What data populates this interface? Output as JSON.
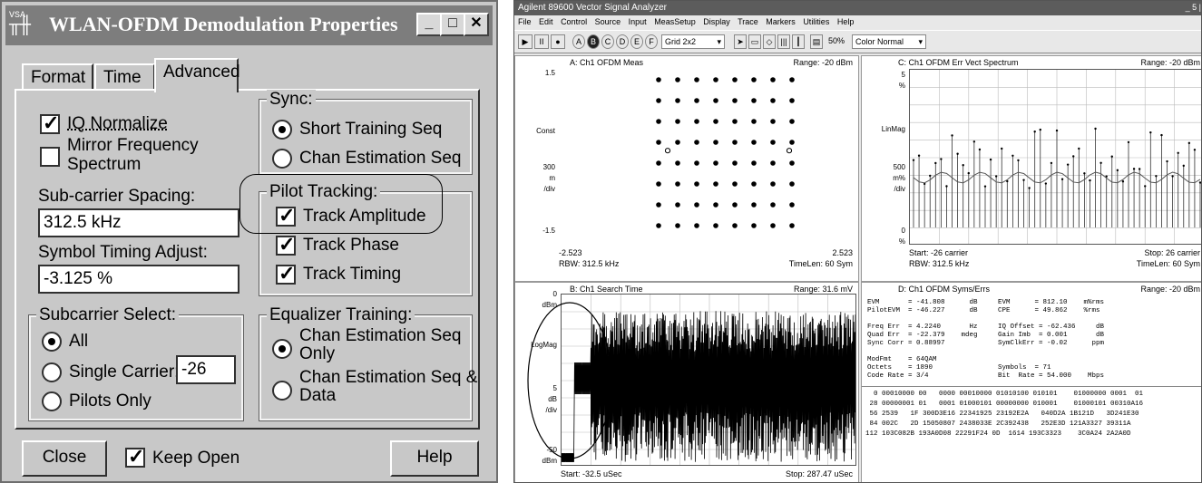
{
  "dialog": {
    "title_icon_text": "VSA",
    "title": "WLAN-OFDM Demodulation Properties",
    "window_buttons": [
      "_",
      "□",
      "✕"
    ],
    "tabs": [
      {
        "label": "Format",
        "active": false
      },
      {
        "label": "Time",
        "active": false
      },
      {
        "label": "Advanced",
        "active": true
      }
    ],
    "iq_normalize": {
      "label": "IQ Normalize",
      "checked": true
    },
    "mirror_freq": {
      "label_line1": "Mirror Frequency",
      "label_line2": "Spectrum",
      "checked": false
    },
    "subcarrier_spacing": {
      "label": "Sub-carrier Spacing:",
      "value": "312.5 kHz"
    },
    "symbol_timing": {
      "label": "Symbol Timing Adjust:",
      "value": "-3.125 %"
    },
    "sync": {
      "title": "Sync:",
      "options": [
        {
          "label": "Short Training Seq",
          "selected": true
        },
        {
          "label": "Chan Estimation Seq",
          "selected": false
        }
      ]
    },
    "pilot_tracking": {
      "title": "Pilot Tracking:",
      "items": [
        {
          "label": "Track Amplitude",
          "checked": true
        },
        {
          "label": "Track Phase",
          "checked": true
        },
        {
          "label": "Track Timing",
          "checked": true
        }
      ]
    },
    "subcarrier_select": {
      "title": "Subcarrier Select:",
      "options": [
        {
          "label": "All",
          "selected": true
        },
        {
          "label": "Single Carrier:",
          "selected": false
        },
        {
          "label": "Pilots Only",
          "selected": false
        }
      ],
      "single_carrier_value": "-26"
    },
    "equalizer_training": {
      "title": "Equalizer Training:",
      "opt1_line1": "Chan Estimation Seq",
      "opt1_line2": "Only",
      "opt2_line1": "Chan Estimation Seq &",
      "opt2_line2": "Data",
      "selected": 0
    },
    "close_label": "Close",
    "keep_open": {
      "label": "Keep Open",
      "checked": true
    },
    "help_label": "Help"
  },
  "vsa": {
    "title": "Agilent 89600 Vector Signal Analyzer",
    "win_controls": "_ 5 |",
    "menu": [
      "File",
      "Edit",
      "Control",
      "Source",
      "Input",
      "MeasSetup",
      "Display",
      "Trace",
      "Markers",
      "Utilities",
      "Help"
    ],
    "toolbar": {
      "play": "▶",
      "pause": "II",
      "record": "●",
      "trace_buttons": [
        "A",
        "B",
        "C",
        "D",
        "E",
        "F"
      ],
      "layout": "Grid 2x2",
      "percent": "50%",
      "color": "Color Normal"
    },
    "traceA": {
      "header": "A: Ch1 OFDM Meas",
      "range": "Range: -20 dBm",
      "y_top": "1.5",
      "y_const": "Const",
      "y_scale_1": "300",
      "y_scale_2": "m",
      "y_scale_3": "/div",
      "y_bottom": "-1.5",
      "x_left": "-2.523",
      "x_right": "2.523",
      "footer_left": "RBW: 312.5 kHz",
      "footer_right": "TimeLen: 60  Sym"
    },
    "traceB": {
      "header": "B: Ch1 Search Time",
      "range": "Range: 31.6 mV",
      "y_top": "0",
      "y_unit_top": "dBm",
      "y_mid": "LogMag",
      "y_scale": "5",
      "y_scale_unit": "dB",
      "y_scale_div": "/div",
      "y_bottom": "-50",
      "y_unit_bottom": "dBm",
      "footer_left": "Start: -32.5 uSec",
      "footer_right": "Stop: 287.47 uSec"
    },
    "traceC": {
      "header": "C: Ch1 OFDM Err Vect Spectrum",
      "range": "Range: -20 dBm",
      "y_top": "5",
      "y_top_unit": "%",
      "y_mid": "LinMag",
      "y_scale_1": "500",
      "y_scale_2": "m%",
      "y_scale_3": "/div",
      "y_bottom": "0",
      "y_bottom_unit": "%",
      "footer_left_1": "Start: -26  carrier",
      "footer_left_2": "RBW: 312.5 kHz",
      "footer_right_1": "Stop: 26  carrier",
      "footer_right_2": "TimeLen: 60  Sym"
    },
    "traceD": {
      "header": "D: Ch1 OFDM Syms/Errs",
      "range": "Range: -20 dBm",
      "lines": [
        "EVM       = -41.808      dB     EVM      = 812.10    m%rms",
        "PilotEVM  = -46.227      dB     CPE      = 49.862    %rms",
        "",
        "Freq Err  = 4.2240       Hz     IQ Offset = -62.436     dB",
        "Quad Err  = -22.379    mdeg     Gain Imb  = 0.001       dB",
        "Sync Corr = 0.88997             SymClkErr = -0.02      ppm",
        "",
        "ModFmt    = 64QAM",
        "Octets    = 1890                Symbols  = 71",
        "Code Rate = 3/4                 Bit  Rate = 54.000    Mbps"
      ],
      "hex_lines": [
        "  0 00010000 00   0000 00010000 01010100 010101    01000000 0001  01",
        " 28 00000001 01   0001 01000101 00000000 010001    01000101 00310A16",
        " 56 2539   1F 300D3E16 22341925 23192E2A   040D2A 1B121D   3D241E30",
        " 84 002C   2D 15050807 2438033E 2C392438   252E3D 121A3327 39311A",
        "112 103C082B 193A0D08 22291F24 0D  1614 193C3323    3C0A24 2A2A0D"
      ]
    }
  }
}
